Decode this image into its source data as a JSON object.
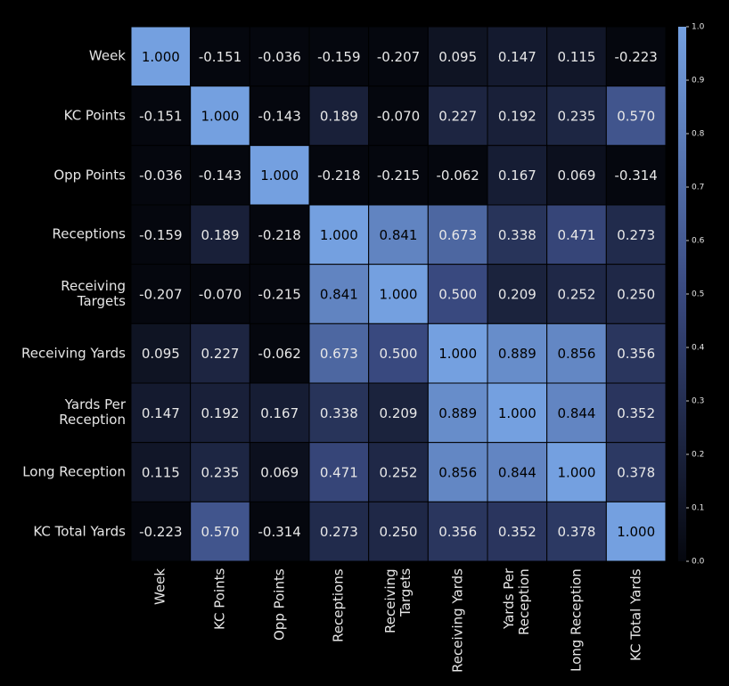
{
  "chart_data": {
    "type": "heatmap",
    "categories": [
      "Week",
      "KC Points",
      "Opp Points",
      "Receptions",
      "Receiving\nTargets",
      "Receiving Yards",
      "Yards Per\nReception",
      "Long Reception",
      "KC Total Yards"
    ],
    "values": [
      [
        1,
        -0.151,
        -0.036,
        -0.159,
        -0.207,
        0.095,
        0.147,
        0.115,
        -0.223
      ],
      [
        -0.151,
        1,
        -0.143,
        0.189,
        -0.07,
        0.227,
        0.192,
        0.235,
        0.57
      ],
      [
        -0.036,
        -0.143,
        1,
        -0.218,
        -0.215,
        -0.062,
        0.167,
        0.069,
        -0.314
      ],
      [
        -0.159,
        0.189,
        -0.218,
        1,
        0.841,
        0.673,
        0.338,
        0.471,
        0.273
      ],
      [
        -0.207,
        -0.07,
        -0.215,
        0.841,
        1,
        0.5,
        0.209,
        0.252,
        0.25
      ],
      [
        0.095,
        0.227,
        -0.062,
        0.673,
        0.5,
        1,
        0.889,
        0.856,
        0.356
      ],
      [
        0.147,
        0.192,
        0.167,
        0.338,
        0.209,
        0.889,
        1,
        0.844,
        0.352
      ],
      [
        0.115,
        0.235,
        0.069,
        0.471,
        0.252,
        0.856,
        0.844,
        1,
        0.378
      ],
      [
        -0.223,
        0.57,
        -0.314,
        0.273,
        0.25,
        0.356,
        0.352,
        0.378,
        1
      ]
    ],
    "value_labels": [
      [
        "1.000",
        "-0.151",
        "-0.036",
        "-0.159",
        "-0.207",
        "0.095",
        "0.147",
        "0.115",
        "-0.223"
      ],
      [
        "-0.151",
        "1.000",
        "-0.143",
        "0.189",
        "-0.070",
        "0.227",
        "0.192",
        "0.235",
        "0.570"
      ],
      [
        "-0.036",
        "-0.143",
        "1.000",
        "-0.218",
        "-0.215",
        "-0.062",
        "0.167",
        "0.069",
        "-0.314"
      ],
      [
        "-0.159",
        "0.189",
        "-0.218",
        "1.000",
        "0.841",
        "0.673",
        "0.338",
        "0.471",
        "0.273"
      ],
      [
        "-0.207",
        "-0.070",
        "-0.215",
        "0.841",
        "1.000",
        "0.500",
        "0.209",
        "0.252",
        "0.250"
      ],
      [
        "0.095",
        "0.227",
        "-0.062",
        "0.673",
        "0.500",
        "1.000",
        "0.889",
        "0.856",
        "0.356"
      ],
      [
        "0.147",
        "0.192",
        "0.167",
        "0.338",
        "0.209",
        "0.889",
        "1.000",
        "0.844",
        "0.352"
      ],
      [
        "0.115",
        "0.235",
        "0.069",
        "0.471",
        "0.252",
        "0.856",
        "0.844",
        "1.000",
        "0.378"
      ],
      [
        "-0.223",
        "0.570",
        "-0.314",
        "0.273",
        "0.250",
        "0.356",
        "0.352",
        "0.378",
        "1.000"
      ]
    ],
    "colormap": [
      "#05070e",
      "#39497f",
      "#74a0e0"
    ],
    "clim": [
      0,
      1
    ],
    "cticks": [
      {
        "value": 0,
        "label": "0.0"
      },
      {
        "value": 0.1,
        "label": "0.1"
      },
      {
        "value": 0.2,
        "label": "0.2"
      },
      {
        "value": 0.3,
        "label": "0.3"
      },
      {
        "value": 0.4,
        "label": "0.4"
      },
      {
        "value": 0.5,
        "label": "0.5"
      },
      {
        "value": 0.6,
        "label": "0.6"
      },
      {
        "value": 0.7,
        "label": "0.7"
      },
      {
        "value": 0.8,
        "label": "0.8"
      },
      {
        "value": 0.9,
        "label": "0.9"
      },
      {
        "value": 1,
        "label": "1.0"
      }
    ]
  }
}
